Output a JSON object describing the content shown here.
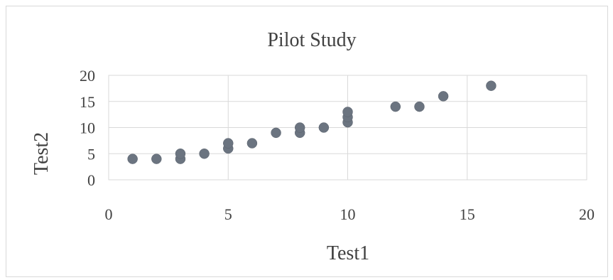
{
  "chart_data": {
    "type": "scatter",
    "title": "Pilot Study",
    "xlabel": "Test1",
    "ylabel": "Test2",
    "xlim": [
      0,
      20
    ],
    "ylim": [
      0,
      20
    ],
    "xticks": [
      "0",
      "5",
      "10",
      "15",
      "20"
    ],
    "yticks": [
      "0",
      "5",
      "10",
      "15",
      "20"
    ],
    "grid": true,
    "legend": "none",
    "point_color": "#6b7480",
    "points": [
      {
        "x": 1,
        "y": 4
      },
      {
        "x": 2,
        "y": 4
      },
      {
        "x": 3,
        "y": 4
      },
      {
        "x": 3,
        "y": 5
      },
      {
        "x": 4,
        "y": 5
      },
      {
        "x": 5,
        "y": 6
      },
      {
        "x": 5,
        "y": 7
      },
      {
        "x": 6,
        "y": 7
      },
      {
        "x": 7,
        "y": 9
      },
      {
        "x": 8,
        "y": 9
      },
      {
        "x": 8,
        "y": 10
      },
      {
        "x": 9,
        "y": 10
      },
      {
        "x": 10,
        "y": 11
      },
      {
        "x": 10,
        "y": 12
      },
      {
        "x": 10,
        "y": 13
      },
      {
        "x": 12,
        "y": 14
      },
      {
        "x": 13,
        "y": 14
      },
      {
        "x": 14,
        "y": 16
      },
      {
        "x": 16,
        "y": 18
      }
    ]
  }
}
